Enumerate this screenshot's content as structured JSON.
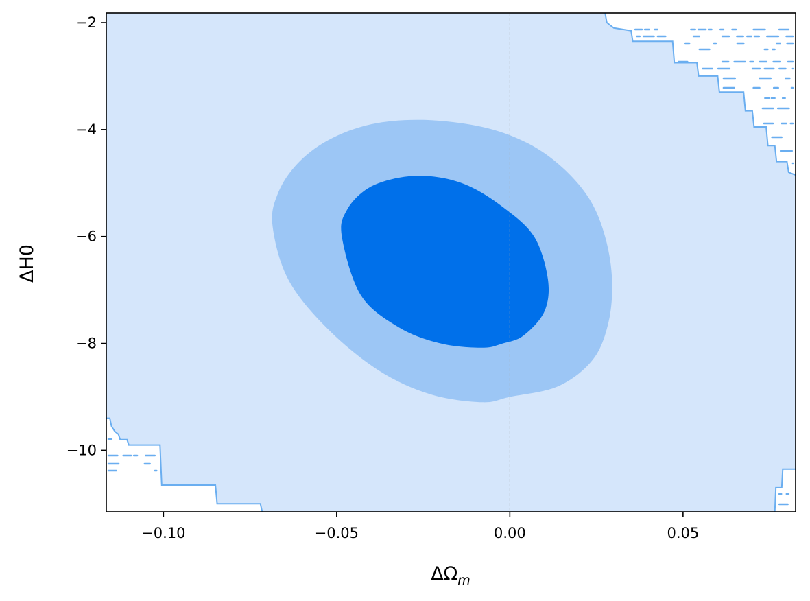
{
  "chart_data": {
    "type": "contour",
    "xlabel": "ΔΩ",
    "xlabel_subscript": "m",
    "ylabel": "ΔH0",
    "xlim": [
      -0.1165,
      0.0825
    ],
    "ylim": [
      -11.15,
      -1.82
    ],
    "x_ticks": [
      -0.1,
      -0.05,
      0.0,
      0.05
    ],
    "x_tick_labels": [
      "−0.10",
      "−0.05",
      "0.00",
      "0.05"
    ],
    "y_ticks": [
      -2,
      -4,
      -6,
      -8,
      -10
    ],
    "y_tick_labels": [
      "−2",
      "−4",
      "−6",
      "−8",
      "−10"
    ],
    "reference_line": {
      "x": 0.0,
      "style": "dashed",
      "color": "#aaaaaa"
    },
    "grid": false,
    "colors": {
      "outer_region": "#d5e6fb",
      "contour_2sigma": "#9cc6f5",
      "contour_1sigma": "#0070ea",
      "boundary_line": "#6aaef0"
    },
    "contours": [
      {
        "level": "2sigma",
        "points": [
          [
            -0.0685,
            -5.8
          ],
          [
            -0.067,
            -5.2
          ],
          [
            -0.0615,
            -4.65
          ],
          [
            -0.0525,
            -4.2
          ],
          [
            -0.04,
            -3.9
          ],
          [
            -0.025,
            -3.82
          ],
          [
            -0.008,
            -3.95
          ],
          [
            0.005,
            -4.25
          ],
          [
            0.015,
            -4.7
          ],
          [
            0.023,
            -5.3
          ],
          [
            0.0275,
            -6.0
          ],
          [
            0.0295,
            -6.8
          ],
          [
            0.0285,
            -7.6
          ],
          [
            0.024,
            -8.3
          ],
          [
            0.014,
            -8.8
          ],
          [
            0.0,
            -9.0
          ],
          [
            -0.008,
            -9.1
          ],
          [
            -0.023,
            -8.95
          ],
          [
            -0.038,
            -8.5
          ],
          [
            -0.053,
            -7.7
          ],
          [
            -0.064,
            -6.8
          ]
        ]
      },
      {
        "level": "1sigma",
        "points": [
          [
            -0.0485,
            -6.0
          ],
          [
            -0.047,
            -5.5
          ],
          [
            -0.041,
            -5.1
          ],
          [
            -0.032,
            -4.9
          ],
          [
            -0.022,
            -4.88
          ],
          [
            -0.012,
            -5.05
          ],
          [
            -0.002,
            -5.45
          ],
          [
            0.007,
            -6.0
          ],
          [
            0.011,
            -6.8
          ],
          [
            0.01,
            -7.4
          ],
          [
            0.004,
            -7.85
          ],
          [
            -0.002,
            -8.0
          ],
          [
            -0.008,
            -8.08
          ],
          [
            -0.02,
            -8.0
          ],
          [
            -0.032,
            -7.7
          ],
          [
            -0.043,
            -7.1
          ]
        ]
      }
    ],
    "boundary_top_right": [
      [
        -0.1165,
        -1.82
      ],
      [
        0.0275,
        -1.82
      ],
      [
        0.028,
        -2.0
      ],
      [
        0.03,
        -2.1
      ],
      [
        0.035,
        -2.15
      ],
      [
        0.0355,
        -2.35
      ],
      [
        0.047,
        -2.35
      ],
      [
        0.0475,
        -2.75
      ],
      [
        0.054,
        -2.75
      ],
      [
        0.0545,
        -3.0
      ],
      [
        0.06,
        -3.0
      ],
      [
        0.0605,
        -3.3
      ],
      [
        0.0675,
        -3.3
      ],
      [
        0.068,
        -3.65
      ],
      [
        0.07,
        -3.65
      ],
      [
        0.0705,
        -3.95
      ],
      [
        0.074,
        -3.95
      ],
      [
        0.0745,
        -4.3
      ],
      [
        0.0765,
        -4.3
      ],
      [
        0.077,
        -4.6
      ],
      [
        0.08,
        -4.6
      ],
      [
        0.0805,
        -4.8
      ],
      [
        0.0825,
        -4.85
      ]
    ],
    "boundary_bottom_left": [
      [
        -0.1165,
        -9.4
      ],
      [
        -0.1155,
        -9.4
      ],
      [
        -0.115,
        -9.55
      ],
      [
        -0.114,
        -9.65
      ],
      [
        -0.113,
        -9.7
      ],
      [
        -0.1125,
        -9.8
      ],
      [
        -0.1105,
        -9.8
      ],
      [
        -0.11,
        -9.9
      ],
      [
        -0.101,
        -9.9
      ],
      [
        -0.1005,
        -10.65
      ],
      [
        -0.085,
        -10.65
      ],
      [
        -0.0845,
        -11.0
      ],
      [
        -0.072,
        -11.0
      ],
      [
        -0.0715,
        -11.15
      ]
    ],
    "boundary_bottom_right": [
      [
        0.0765,
        -11.15
      ],
      [
        0.0768,
        -10.7
      ],
      [
        0.0785,
        -10.7
      ],
      [
        0.0788,
        -10.35
      ],
      [
        0.0825,
        -10.35
      ]
    ]
  }
}
